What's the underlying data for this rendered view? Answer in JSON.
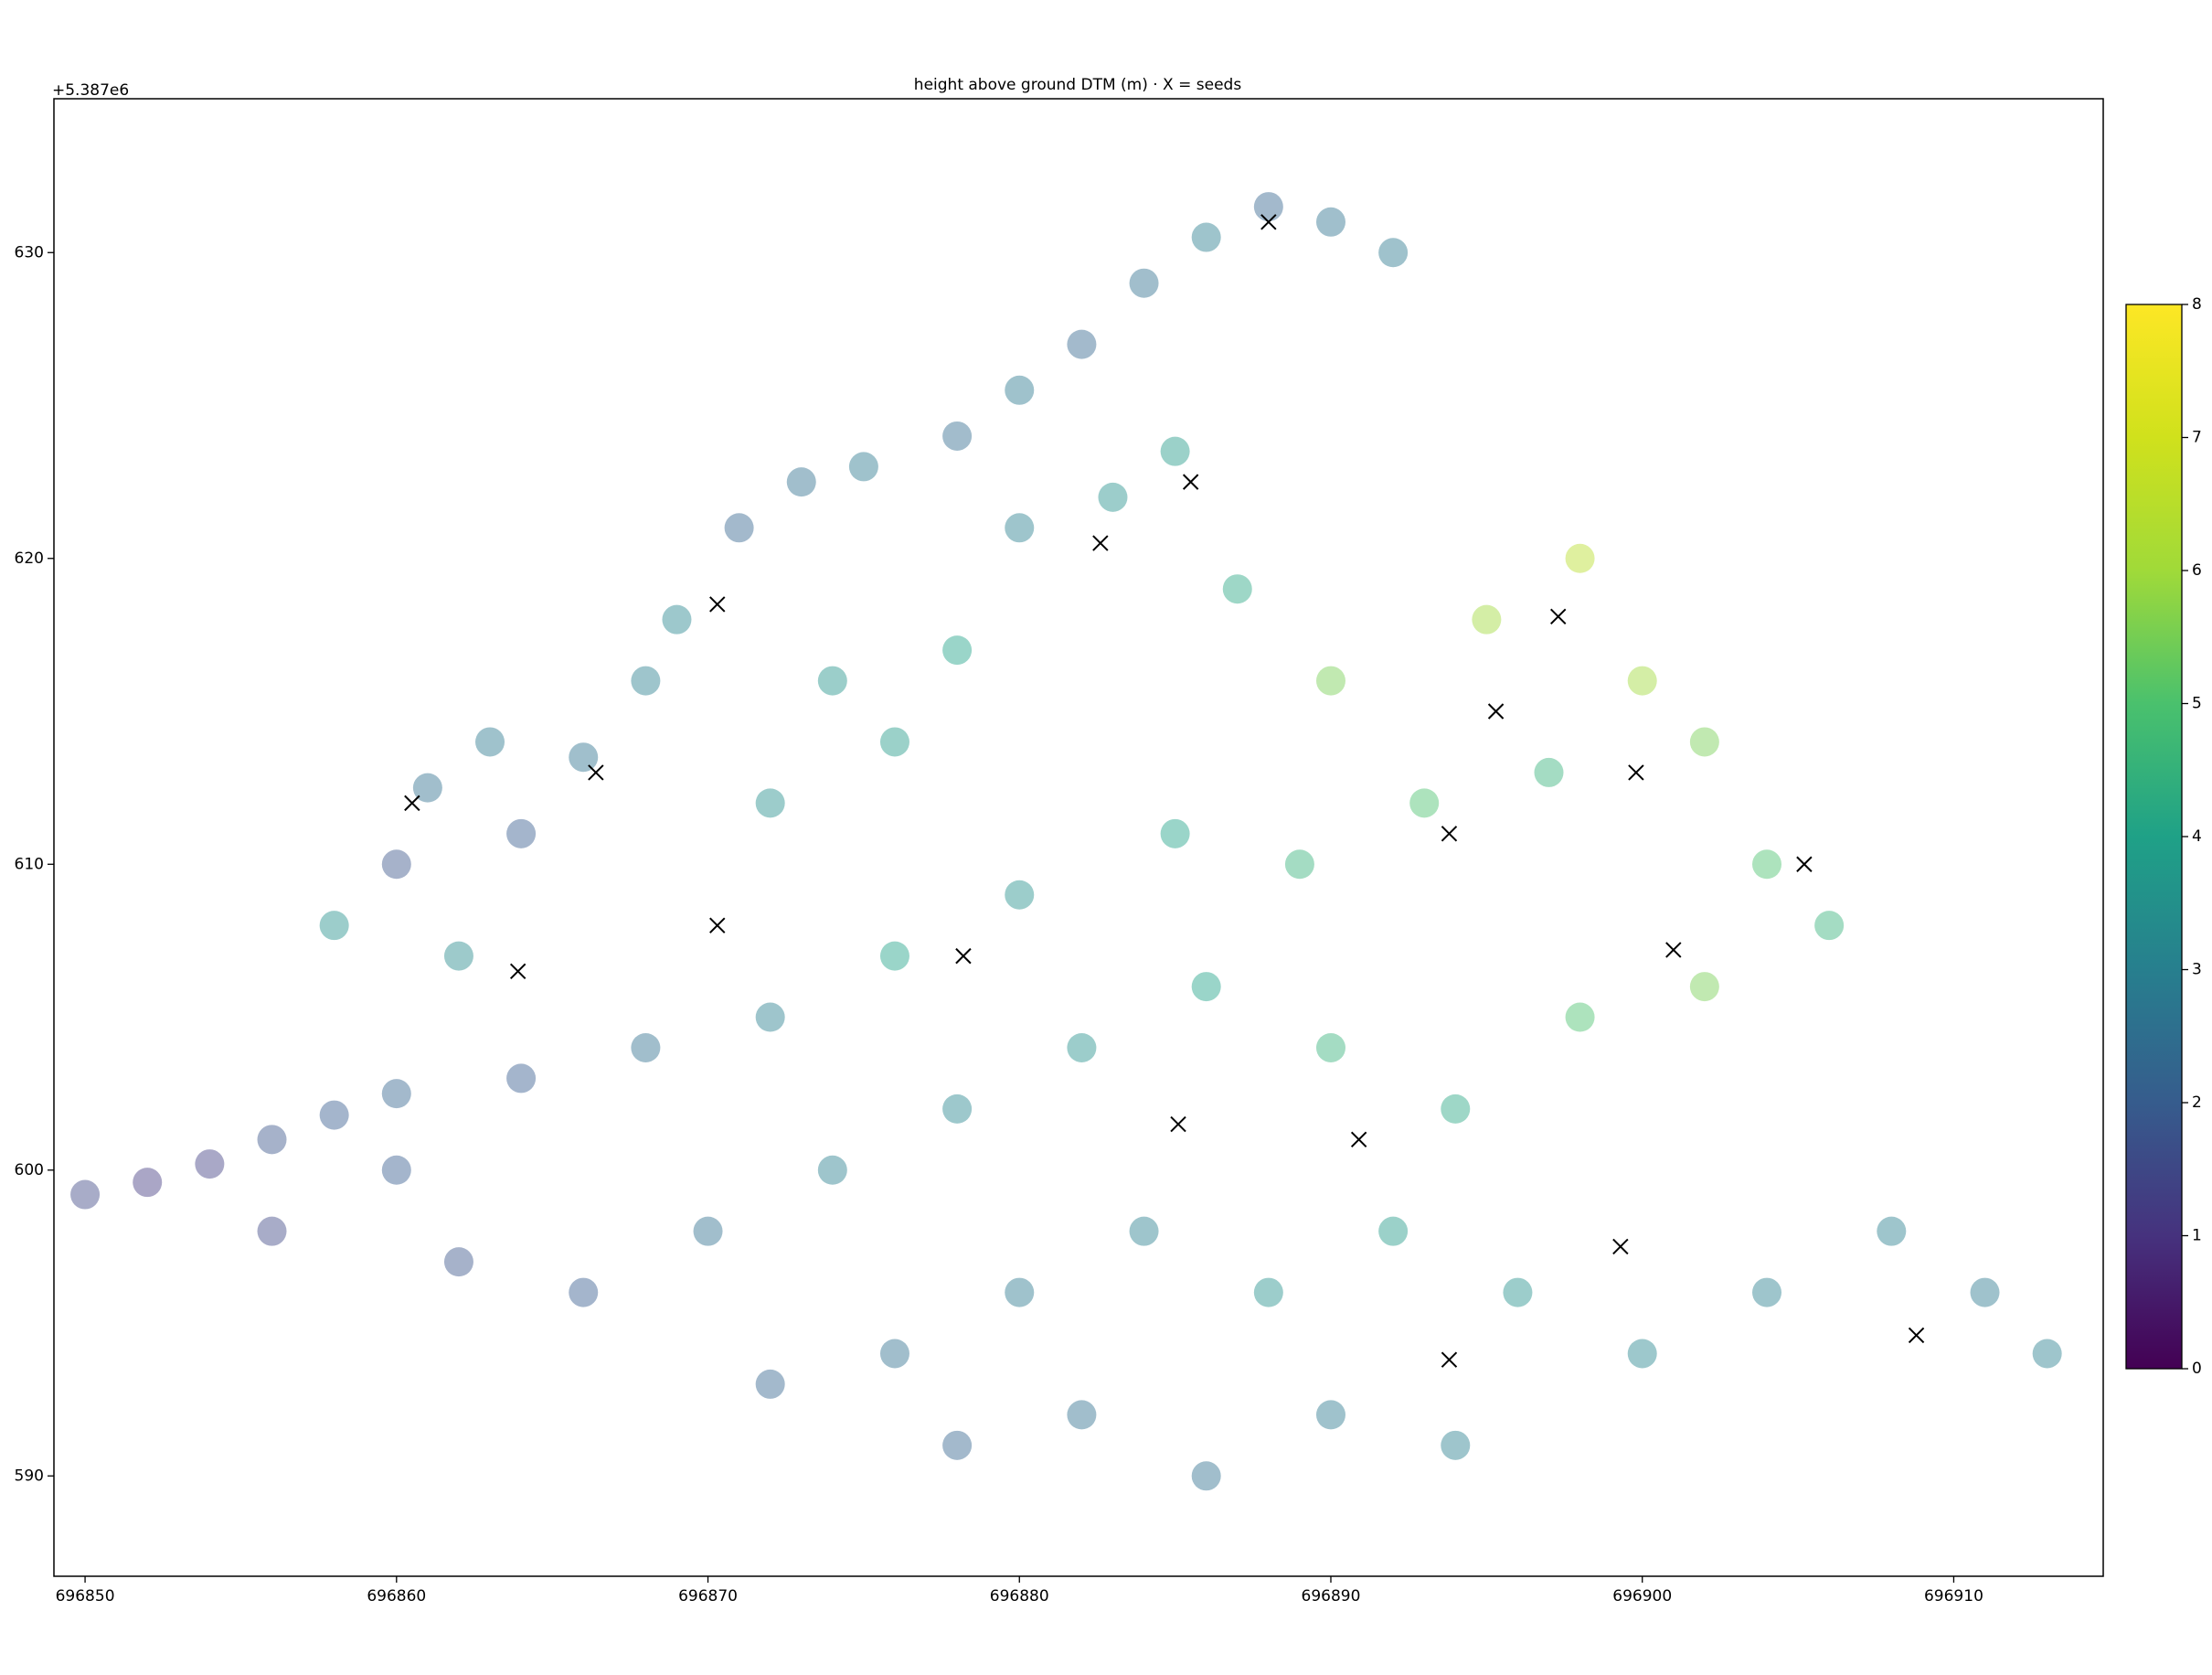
{
  "chart_data": {
    "type": "scatter",
    "title": "height above ground DTM (m) · X = seeds",
    "y_offset_label": "+5.387e6",
    "xlim": [
      696849.0,
      696914.8
    ],
    "ylim": [
      586.72,
      635.03
    ],
    "xticks": [
      696850,
      696860,
      696870,
      696880,
      696890,
      696900,
      696910
    ],
    "yticks": [
      590,
      600,
      610,
      620,
      630
    ],
    "colorbar": {
      "lim": [
        0,
        8
      ],
      "ticks": [
        0,
        1,
        2,
        3,
        4,
        5,
        6,
        7,
        8
      ],
      "colormap": "viridis"
    },
    "points": {
      "x": [
        696850,
        696852,
        696854,
        696856,
        696858,
        696860,
        696858,
        696860,
        696861,
        696863,
        696862,
        696864,
        696866,
        696868,
        696869,
        696871,
        696873,
        696875,
        696878,
        696880,
        696882,
        696884,
        696886,
        696888,
        696890,
        696892,
        696883,
        696885,
        696880,
        696878,
        696876,
        696872,
        696874,
        696887,
        696890,
        696895,
        696898,
        696900,
        696902,
        696897,
        696904,
        696906,
        696893,
        696889,
        696885,
        696880,
        696876,
        696872,
        696868,
        696864,
        696860,
        696856,
        696862,
        696866,
        696870,
        696874,
        696878,
        696882,
        696886,
        696890,
        696894,
        696898,
        696902,
        696884,
        696880,
        696876,
        696872,
        696888,
        696892,
        696896,
        696900,
        696904,
        696908,
        696911,
        696913,
        696886,
        696882,
        696878,
        696890,
        696894
      ],
      "y": [
        599.2,
        599.6,
        600.2,
        601,
        601.8,
        602.5,
        608,
        610,
        612.5,
        614,
        607,
        611,
        613.5,
        616,
        618,
        621,
        622.5,
        623,
        624,
        625.5,
        627,
        629,
        630.5,
        631.5,
        631,
        630,
        622,
        623.5,
        621,
        617,
        614,
        612,
        616,
        619,
        616,
        618,
        620,
        616,
        614,
        613,
        610,
        608,
        612,
        610,
        611,
        609,
        607,
        605,
        604,
        603,
        600,
        598,
        597,
        596,
        598,
        600,
        602,
        604,
        606,
        604,
        602,
        605,
        606,
        598,
        596,
        594,
        593,
        596,
        598,
        596,
        594,
        596,
        598,
        596,
        594,
        590,
        592,
        591,
        592,
        591
      ],
      "values": [
        1.5,
        1.2,
        1.3,
        1.8,
        2,
        2.2,
        3.5,
        1.8,
        2.5,
        2.8,
        3.3,
        2,
        2.6,
        3,
        3.2,
        2.2,
        2.5,
        2.8,
        2.4,
        2.8,
        2.3,
        2.5,
        2.9,
        2.2,
        2.6,
        2.8,
        3.5,
        3.8,
        3,
        4,
        3.8,
        3.4,
        3.6,
        4.2,
        5.5,
        6,
        6.5,
        6,
        5.5,
        4.5,
        5,
        4.5,
        5,
        4.5,
        4,
        3.5,
        4,
        3,
        2.5,
        2,
        2,
        1.5,
        1.8,
        2,
        2.5,
        3,
        3.2,
        3.5,
        4,
        4.5,
        4.2,
        5,
        5.5,
        3,
        2.8,
        2.5,
        2.2,
        3.5,
        3.8,
        3.5,
        3.2,
        3,
        3,
        2.8,
        3,
        2.5,
        2.5,
        2.2,
        2.8,
        3
      ]
    },
    "seeds": {
      "name": "seeds",
      "color": "#000000",
      "x": [
        696888.0,
        696885.5,
        696882.6,
        696870.3,
        696897.3,
        696895.3,
        696866.4,
        696860.5,
        696899.8,
        696893.8,
        696905.2,
        696870.3,
        696878.2,
        696901.0,
        696863.9,
        696885.1,
        696890.9,
        696899.3,
        696893.8,
        696908.8
      ],
      "y": [
        631.0,
        622.5,
        620.5,
        618.5,
        618.1,
        615.0,
        613.0,
        612.0,
        613.0,
        611.0,
        610.0,
        608.0,
        607.0,
        607.2,
        606.5,
        601.5,
        601.0,
        597.5,
        593.8,
        594.6
      ]
    }
  }
}
